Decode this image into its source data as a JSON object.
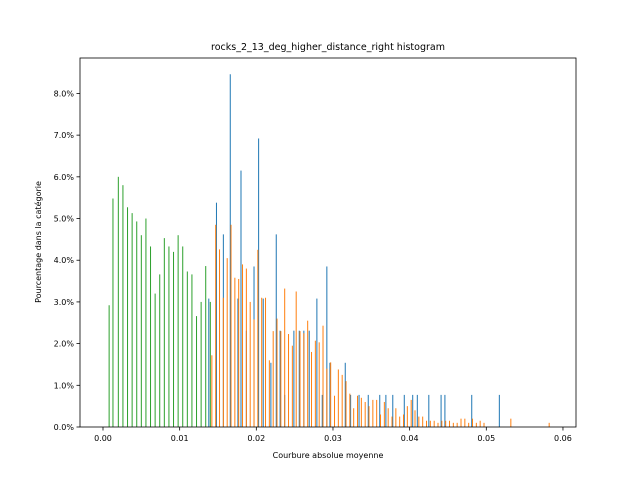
{
  "chart_data": {
    "type": "bar",
    "title": "rocks_2_13_deg_higher_distance_right histogram",
    "xlabel": "Courbure absolue moyenne",
    "ylabel": "Pourcentage dans la catégorie",
    "xlim": [
      -0.003,
      0.0617
    ],
    "ylim": [
      0,
      0.0885
    ],
    "grid": false,
    "legend": "none",
    "xticks": [
      0.0,
      0.01,
      0.02,
      0.03,
      0.04,
      0.05,
      0.06
    ],
    "xtick_labels": [
      "0.00",
      "0.01",
      "0.02",
      "0.03",
      "0.04",
      "0.05",
      "0.06"
    ],
    "yticks": [
      0.0,
      0.01,
      0.02,
      0.03,
      0.04,
      0.05,
      0.06,
      0.07,
      0.08
    ],
    "ytick_labels": [
      "0.0%",
      "1.0%",
      "2.0%",
      "3.0%",
      "4.0%",
      "5.0%",
      "6.0%",
      "7.0%",
      "8.0%"
    ],
    "series": [
      {
        "color": "#1f77b4",
        "bars": [
          [
            0.0138,
            0.0308
          ],
          [
            0.0148,
            0.0538
          ],
          [
            0.0157,
            0.0462
          ],
          [
            0.0166,
            0.0846
          ],
          [
            0.0176,
            0.0308
          ],
          [
            0.018,
            0.0615
          ],
          [
            0.0187,
            0.0231
          ],
          [
            0.0197,
            0.0385
          ],
          [
            0.0203,
            0.0692
          ],
          [
            0.0209,
            0.0308
          ],
          [
            0.0219,
            0.0154
          ],
          [
            0.0226,
            0.0462
          ],
          [
            0.0231,
            0.0231
          ],
          [
            0.0237,
            0.0077
          ],
          [
            0.0249,
            0.0231
          ],
          [
            0.0256,
            0.0231
          ],
          [
            0.0262,
            0.0231
          ],
          [
            0.0269,
            0.0231
          ],
          [
            0.0279,
            0.0308
          ],
          [
            0.0286,
            0.0077
          ],
          [
            0.0292,
            0.0385
          ],
          [
            0.0296,
            0.0154
          ],
          [
            0.0316,
            0.0154
          ],
          [
            0.0323,
            0.0077
          ],
          [
            0.0334,
            0.0077
          ],
          [
            0.0346,
            0.0077
          ],
          [
            0.0361,
            0.0077
          ],
          [
            0.0369,
            0.0077
          ],
          [
            0.0378,
            0.0077
          ],
          [
            0.0393,
            0.0077
          ],
          [
            0.0404,
            0.0077
          ],
          [
            0.041,
            0.0077
          ],
          [
            0.0425,
            0.0077
          ],
          [
            0.0441,
            0.0077
          ],
          [
            0.0446,
            0.0077
          ],
          [
            0.0481,
            0.0077
          ],
          [
            0.0517,
            0.0077
          ]
        ]
      },
      {
        "color": "#ff7f0e",
        "bars": [
          [
            0.0142,
            0.0172
          ],
          [
            0.0147,
            0.0485
          ],
          [
            0.0152,
            0.0426
          ],
          [
            0.0157,
            0.031
          ],
          [
            0.0162,
            0.0405
          ],
          [
            0.0167,
            0.0485
          ],
          [
            0.0172,
            0.0358
          ],
          [
            0.0177,
            0.0355
          ],
          [
            0.0182,
            0.039
          ],
          [
            0.0187,
            0.038
          ],
          [
            0.0192,
            0.03
          ],
          [
            0.0197,
            0.0258
          ],
          [
            0.0202,
            0.0425
          ],
          [
            0.0207,
            0.031
          ],
          [
            0.0212,
            0.031
          ],
          [
            0.0217,
            0.016
          ],
          [
            0.0222,
            0.023
          ],
          [
            0.0227,
            0.026
          ],
          [
            0.0232,
            0.023
          ],
          [
            0.0237,
            0.0332
          ],
          [
            0.0242,
            0.0223
          ],
          [
            0.0247,
            0.0195
          ],
          [
            0.0252,
            0.0325
          ],
          [
            0.0257,
            0.023
          ],
          [
            0.0262,
            0.0225
          ],
          [
            0.0267,
            0.0255
          ],
          [
            0.0272,
            0.018
          ],
          [
            0.0277,
            0.0207
          ],
          [
            0.0282,
            0.0203
          ],
          [
            0.0287,
            0.0243
          ],
          [
            0.0292,
            0.014
          ],
          [
            0.0297,
            0.0155
          ],
          [
            0.0302,
            0.0075
          ],
          [
            0.0307,
            0.0138
          ],
          [
            0.0312,
            0.0125
          ],
          [
            0.0317,
            0.011
          ],
          [
            0.0322,
            0.008
          ],
          [
            0.0327,
            0.0045
          ],
          [
            0.0332,
            0.0075
          ],
          [
            0.0337,
            0.007
          ],
          [
            0.0342,
            0.006
          ],
          [
            0.0347,
            0.005
          ],
          [
            0.0352,
            0.0065
          ],
          [
            0.0357,
            0.0065
          ],
          [
            0.0362,
            0.003
          ],
          [
            0.0367,
            0.006
          ],
          [
            0.0372,
            0.0045
          ],
          [
            0.0377,
            0.0025
          ],
          [
            0.0382,
            0.0045
          ],
          [
            0.0387,
            0.0025
          ],
          [
            0.0392,
            0.003
          ],
          [
            0.0397,
            0.005
          ],
          [
            0.0402,
            0.0065
          ],
          [
            0.0407,
            0.004
          ],
          [
            0.0412,
            0.0025
          ],
          [
            0.0417,
            0.0025
          ],
          [
            0.0422,
            0.0015
          ],
          [
            0.0427,
            0.0015
          ],
          [
            0.0432,
            0.0015
          ],
          [
            0.0437,
            0.001
          ],
          [
            0.0442,
            0.0015
          ],
          [
            0.0447,
            0.0015
          ],
          [
            0.0452,
            0.0015
          ],
          [
            0.0457,
            0.001
          ],
          [
            0.0462,
            0.001
          ],
          [
            0.0467,
            0.002
          ],
          [
            0.0472,
            0.002
          ],
          [
            0.0477,
            0.001
          ],
          [
            0.0482,
            0.002
          ],
          [
            0.0487,
            0.001
          ],
          [
            0.0492,
            0.0015
          ],
          [
            0.0497,
            0.001
          ],
          [
            0.0532,
            0.002
          ],
          [
            0.0582,
            0.001
          ]
        ]
      },
      {
        "color": "#2ca02c",
        "bars": [
          [
            0.0008,
            0.0292
          ],
          [
            0.0013,
            0.0548
          ],
          [
            0.002,
            0.06
          ],
          [
            0.0026,
            0.058
          ],
          [
            0.0032,
            0.0527
          ],
          [
            0.0038,
            0.0513
          ],
          [
            0.0044,
            0.0493
          ],
          [
            0.005,
            0.046
          ],
          [
            0.0056,
            0.05
          ],
          [
            0.0062,
            0.0433
          ],
          [
            0.0068,
            0.032
          ],
          [
            0.0074,
            0.0366
          ],
          [
            0.008,
            0.0453
          ],
          [
            0.0086,
            0.0433
          ],
          [
            0.0092,
            0.042
          ],
          [
            0.0098,
            0.046
          ],
          [
            0.0104,
            0.0433
          ],
          [
            0.011,
            0.0373
          ],
          [
            0.0116,
            0.0366
          ],
          [
            0.0122,
            0.0266
          ],
          [
            0.0128,
            0.03
          ],
          [
            0.0134,
            0.0386
          ],
          [
            0.014,
            0.03
          ]
        ]
      }
    ]
  }
}
